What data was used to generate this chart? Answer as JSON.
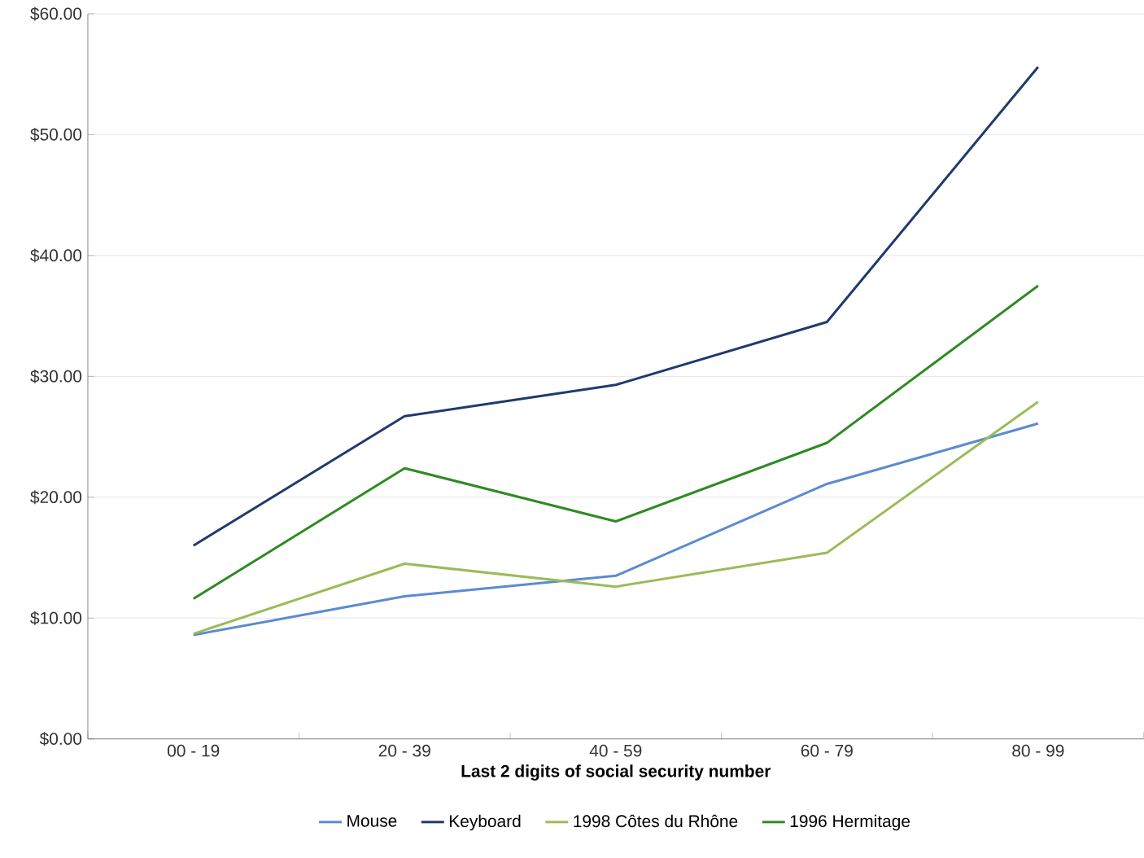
{
  "chart_data": {
    "type": "line",
    "xlabel": "Last 2 digits of social security number",
    "categories": [
      "00 - 19",
      "20 - 39",
      "40 - 59",
      "60 - 79",
      "80 - 99"
    ],
    "ylim": [
      0,
      60
    ],
    "yticks": [
      {
        "value": 0,
        "label": "$0.00"
      },
      {
        "value": 10,
        "label": "$10.00"
      },
      {
        "value": 20,
        "label": "$20.00"
      },
      {
        "value": 30,
        "label": "$30.00"
      },
      {
        "value": 40,
        "label": "$40.00"
      },
      {
        "value": 50,
        "label": "$50.00"
      },
      {
        "value": 60,
        "label": "$60.00"
      }
    ],
    "grid": "y",
    "legend": "bottom",
    "line_style": "solid",
    "marker": "none",
    "series": [
      {
        "name": "Mouse",
        "color": "#5b8bd0",
        "values": [
          8.6,
          11.8,
          13.5,
          21.1,
          26.1
        ]
      },
      {
        "name": "Keyboard",
        "color": "#1f3a6e",
        "values": [
          16.0,
          26.7,
          29.3,
          34.5,
          55.6
        ]
      },
      {
        "name": "1998 Côtes du Rhône",
        "color": "#9bbb59",
        "values": [
          8.7,
          14.5,
          12.6,
          15.4,
          27.9
        ]
      },
      {
        "name": "1996 Hermitage",
        "color": "#2e8b22",
        "values": [
          11.6,
          22.4,
          18.0,
          24.5,
          37.5
        ]
      }
    ]
  }
}
